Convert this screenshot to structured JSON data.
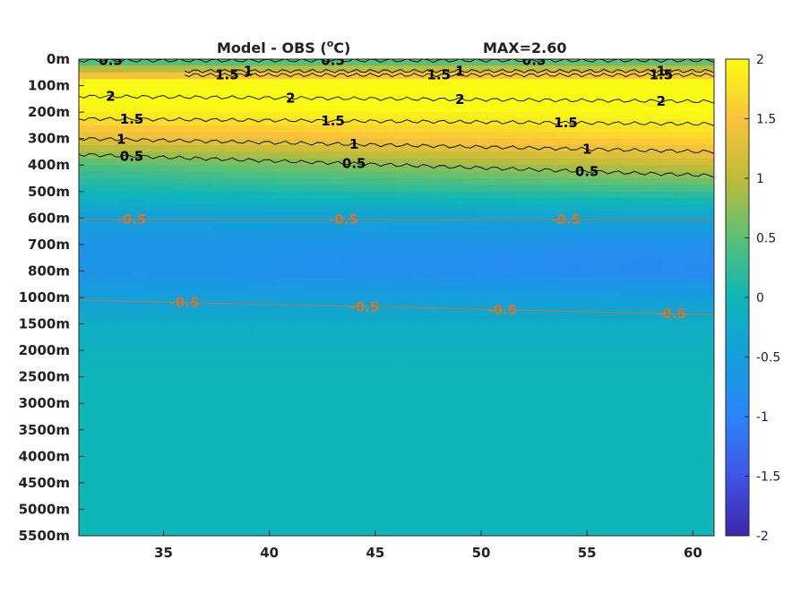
{
  "chart_data": {
    "type": "heatmap",
    "title": "Model - OBS (°C)",
    "title_parts": {
      "prefix": "Model - OBS (",
      "superscript": "o",
      "suffix": "C)"
    },
    "max_label": "MAX=2.60",
    "xlabel": "",
    "ylabel": "",
    "xlim": [
      31,
      61
    ],
    "x_ticks": [
      35,
      40,
      45,
      50,
      55,
      60
    ],
    "y_tick_labels": [
      "0m",
      "100m",
      "200m",
      "300m",
      "400m",
      "500m",
      "600m",
      "700m",
      "800m",
      "1000m",
      "1500m",
      "2000m",
      "2500m",
      "3000m",
      "3500m",
      "4000m",
      "4500m",
      "5000m",
      "5500m"
    ],
    "colorbar": {
      "range": [
        -2,
        2
      ],
      "ticks": [
        -2,
        -1.5,
        -1,
        -0.5,
        0,
        0.5,
        1,
        1.5,
        2
      ],
      "tick_labels": [
        "-2",
        "-1.5",
        "-1",
        "-0.5",
        "0",
        "0.5",
        "1",
        "1.5",
        "2"
      ],
      "colormap": "parula"
    },
    "profile": {
      "depth_levels": [
        "0m",
        "100m",
        "200m",
        "300m",
        "400m",
        "500m",
        "600m",
        "700m",
        "800m",
        "1000m",
        "1500m",
        "2000m",
        "2500m",
        "3000m",
        "3500m",
        "4000m",
        "4500m",
        "5000m",
        "5500m"
      ],
      "values_west": [
        0.2,
        2.2,
        1.9,
        1.3,
        0.4,
        0.0,
        -0.5,
        -0.7,
        -0.7,
        -0.5,
        -0.2,
        -0.1,
        0.0,
        0.0,
        0.0,
        0.0,
        0.0,
        0.0,
        0.0
      ],
      "values_east": [
        0.3,
        2.3,
        2.0,
        1.7,
        1.1,
        0.3,
        -0.4,
        -0.8,
        -0.9,
        -0.5,
        -0.2,
        -0.1,
        0.0,
        0.0,
        0.0,
        0.0,
        0.0,
        0.0,
        0.0
      ]
    },
    "contours": [
      {
        "level": 0.5,
        "label": "0.5",
        "color": "#000000",
        "points": [
          [
            31,
            0.05
          ],
          [
            61,
            0.05
          ]
        ],
        "label_x": [
          32.5,
          43,
          52.5
        ]
      },
      {
        "level": 1.5,
        "label": "1.5",
        "color": "#000000",
        "points": [
          [
            36,
            0.6
          ],
          [
            61,
            0.6
          ]
        ],
        "label_x": [
          38,
          48,
          58.5
        ]
      },
      {
        "level": 1,
        "label": "1",
        "color": "#000000",
        "points": [
          [
            36,
            0.45
          ],
          [
            61,
            0.45
          ]
        ],
        "label_x": [
          39,
          49,
          58.5
        ]
      },
      {
        "level": 2,
        "label": "2",
        "color": "#000000",
        "points": [
          [
            31,
            1.4
          ],
          [
            61,
            1.6
          ]
        ],
        "label_x": [
          32.5,
          41,
          49,
          58.5
        ]
      },
      {
        "level": 1.5,
        "label": "1.5",
        "color": "#000000",
        "points": [
          [
            31,
            2.25
          ],
          [
            61,
            2.45
          ]
        ],
        "label_x": [
          33.5,
          43,
          54
        ]
      },
      {
        "level": 1,
        "label": "1",
        "color": "#000000",
        "points": [
          [
            31,
            3.0
          ],
          [
            61,
            3.5
          ]
        ],
        "label_x": [
          33,
          44,
          55
        ]
      },
      {
        "level": 0.5,
        "label": "0.5",
        "color": "#000000",
        "points": [
          [
            31,
            3.6
          ],
          [
            61,
            4.4
          ]
        ],
        "label_x": [
          33.5,
          44,
          55
        ]
      },
      {
        "level": -0.5,
        "label": "-0.5",
        "color": "#cc7733",
        "points": [
          [
            31,
            6.05
          ],
          [
            61,
            6.05
          ]
        ],
        "label_x": [
          33.5,
          43.5,
          54
        ]
      },
      {
        "level": -0.5,
        "label": "-0.5",
        "color": "#cc7733",
        "points": [
          [
            31,
            9.1
          ],
          [
            61,
            9.65
          ]
        ],
        "label_x": [
          36,
          44.5,
          51,
          59
        ]
      }
    ]
  }
}
